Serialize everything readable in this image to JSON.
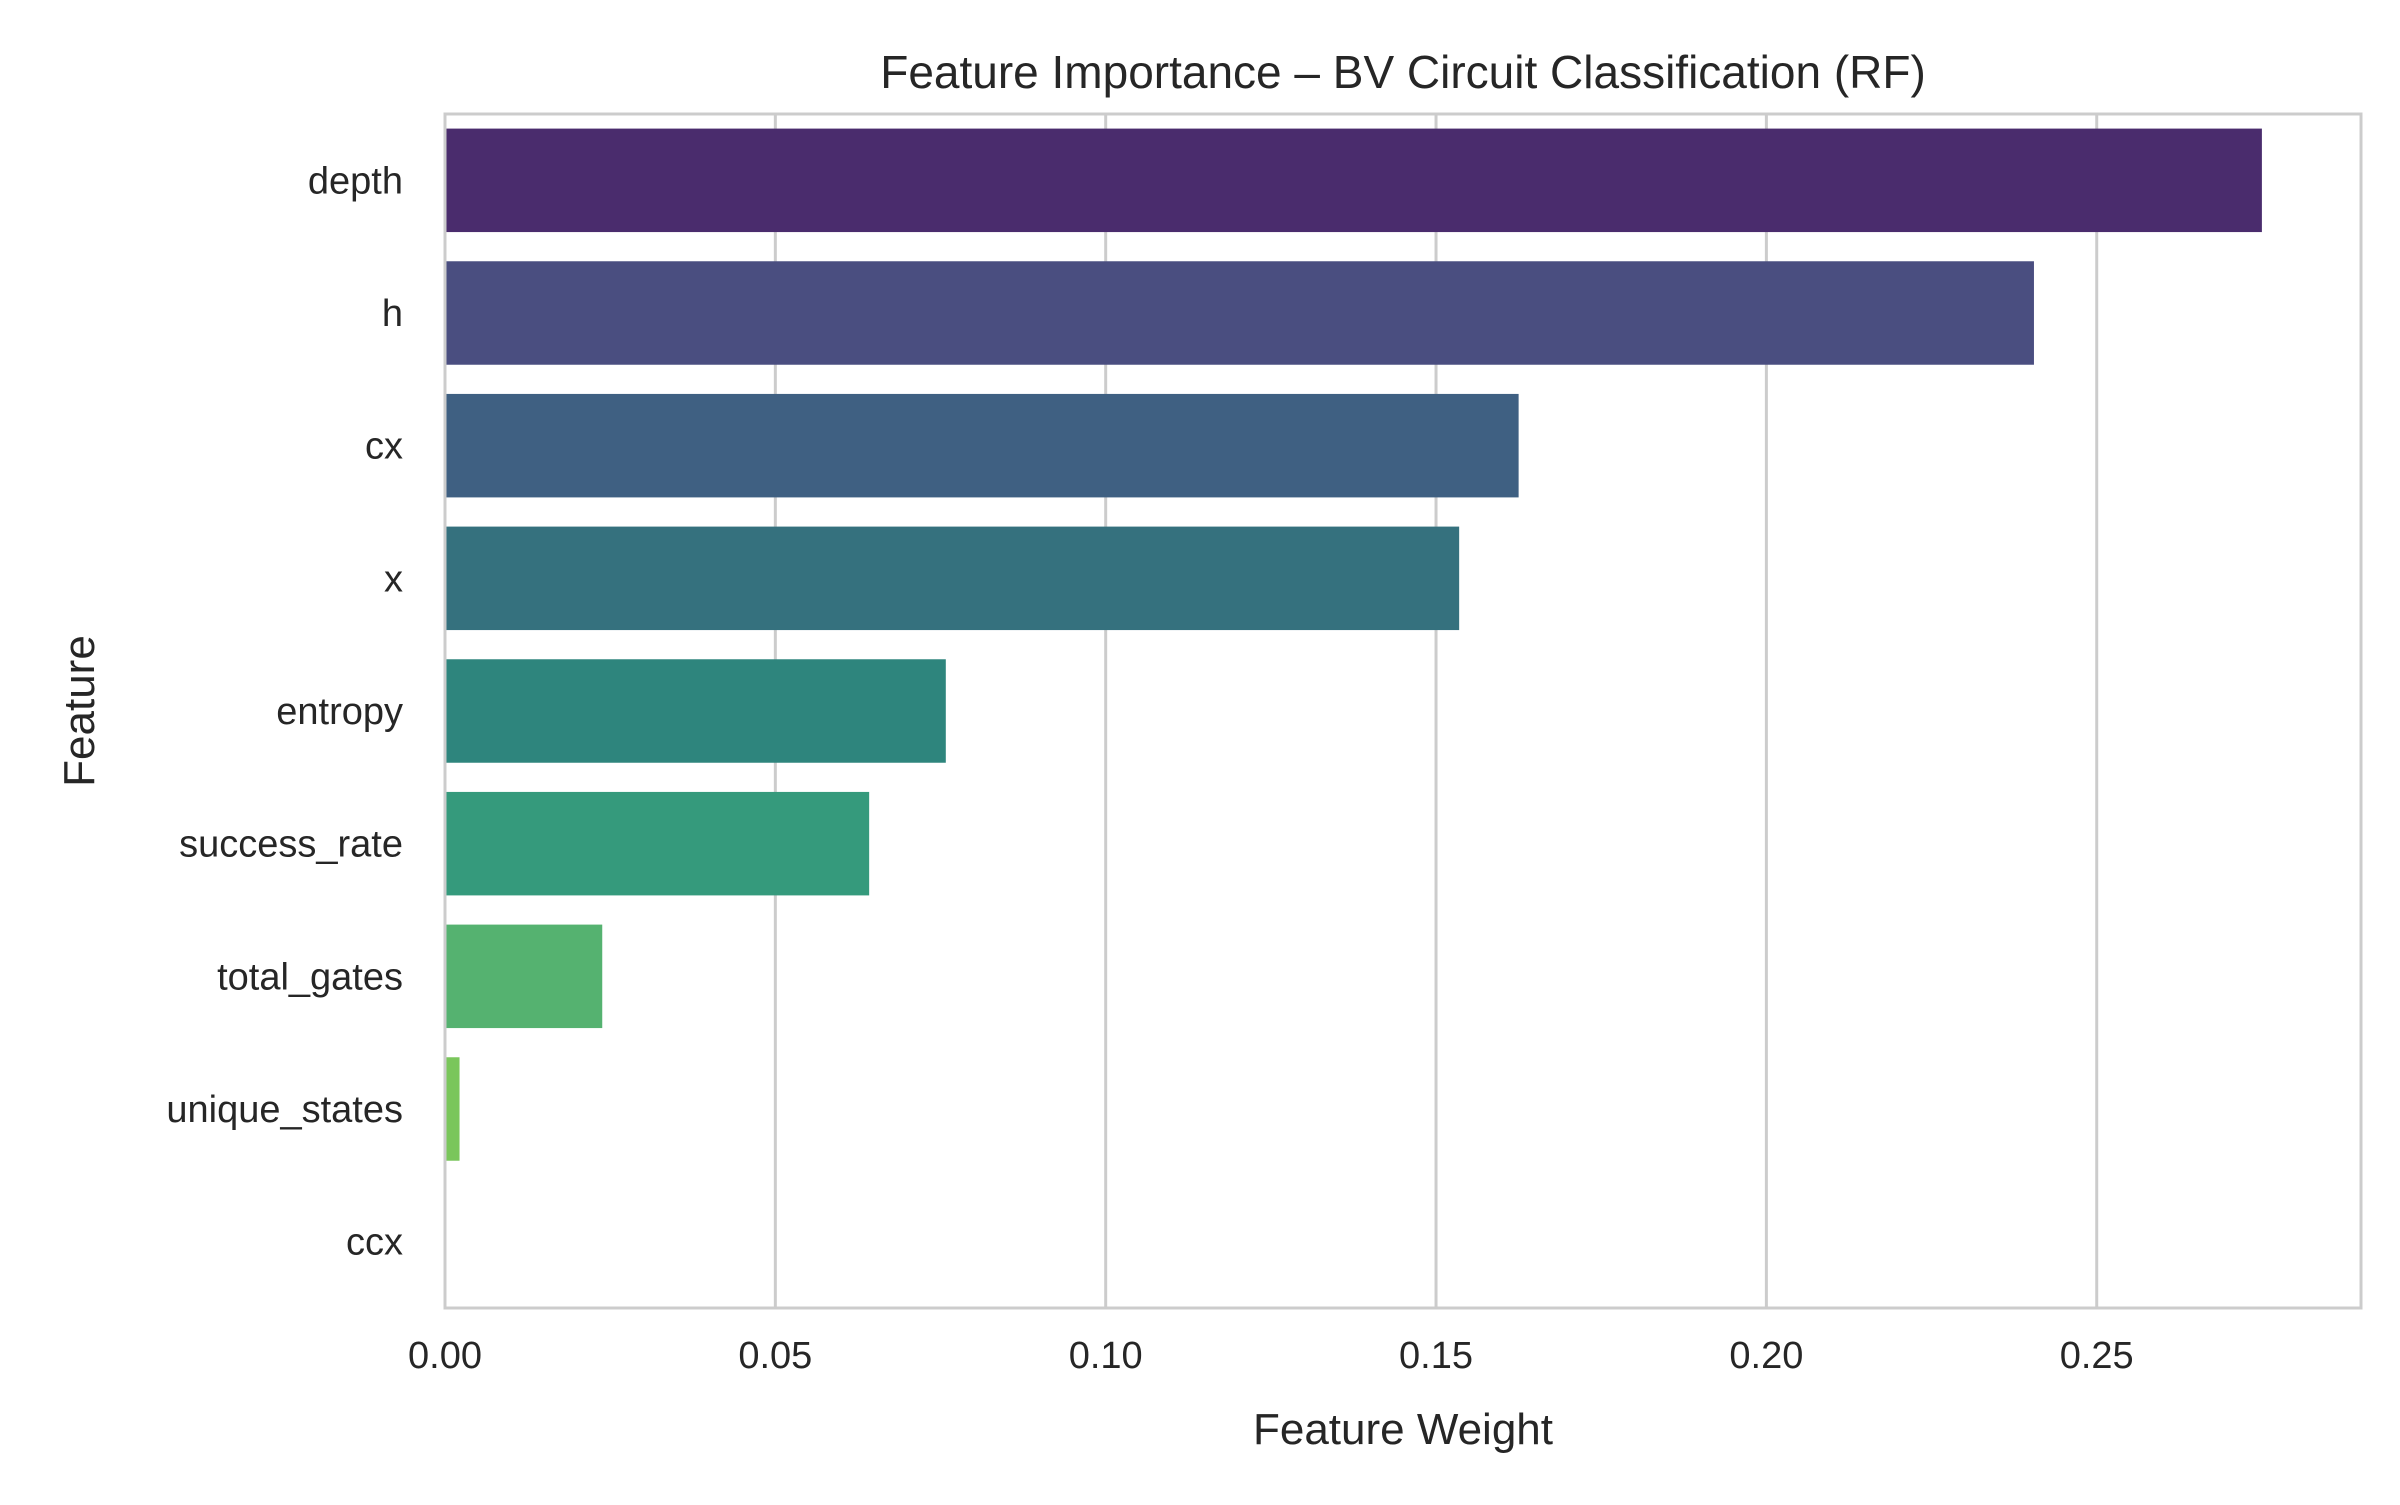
{
  "chart_data": {
    "type": "bar",
    "orientation": "horizontal",
    "title": "Feature Importance – BV Circuit Classification (RF)",
    "xlabel": "Feature Weight",
    "ylabel": "Feature",
    "categories": [
      "depth",
      "h",
      "cx",
      "x",
      "entropy",
      "success_rate",
      "total_gates",
      "unique_states",
      "ccx"
    ],
    "values": [
      0.275,
      0.2405,
      0.1625,
      0.1535,
      0.0758,
      0.0642,
      0.0238,
      0.0022,
      0.0
    ],
    "xlim": [
      0,
      0.29
    ],
    "xticks": [
      0.0,
      0.05,
      0.1,
      0.15,
      0.2,
      0.25
    ],
    "xtick_labels": [
      "0.00",
      "0.05",
      "0.10",
      "0.15",
      "0.20",
      "0.25"
    ],
    "grid": true,
    "colors": [
      "#4a2c6d",
      "#4a4e80",
      "#3f6082",
      "#35717e",
      "#2e857d",
      "#359a7c",
      "#55b270",
      "#7ac65b",
      "#b5d941"
    ],
    "frame_color": "#cccccc",
    "grid_color": "#cccccc"
  }
}
